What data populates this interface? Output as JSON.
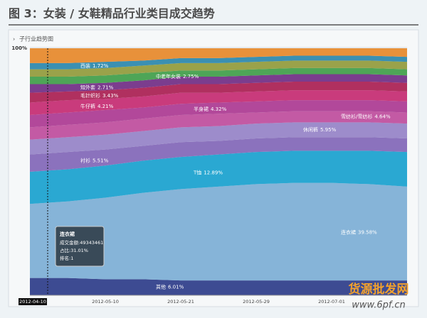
{
  "chart_data": {
    "type": "area",
    "stacked": true,
    "title": "图 3：女装 / 女鞋精品行业类目成交趋势",
    "subtitle": "子行业趋势图",
    "categories": [
      "2012-04-10",
      null,
      "2012-05-10",
      null,
      "2012-05-21",
      null,
      "2012-05-29",
      null,
      "2012-07-01",
      null,
      null
    ],
    "ylim": [
      0,
      100
    ],
    "yticks": [
      {
        "value": 100,
        "label": "100%"
      }
    ],
    "series": [
      {
        "name": "其他",
        "share": 6.01,
        "share_label": "6.01%",
        "color": "#3d4b92",
        "values": [
          7,
          7,
          6.5,
          6.5,
          6,
          6,
          6,
          6,
          6,
          6,
          6
        ]
      },
      {
        "name": "连衣裙",
        "share": 39.58,
        "share_label": "39.58%",
        "color": "#86b4d8",
        "values": [
          30,
          31,
          33,
          35,
          37,
          38,
          39,
          39.5,
          39.5,
          39,
          38
        ]
      },
      {
        "name": "T恤",
        "share": 12.89,
        "share_label": "12.89%",
        "color": "#2aa8d2",
        "values": [
          13,
          13,
          13,
          13,
          13,
          13,
          13,
          13,
          13,
          13.5,
          14
        ]
      },
      {
        "name": "衬衫",
        "share": 5.51,
        "share_label": "5.51%",
        "color": "#8b72bd",
        "values": [
          7,
          7,
          6.5,
          6,
          6,
          5.5,
          5.5,
          5.5,
          5.5,
          5.5,
          5.5
        ]
      },
      {
        "name": "休闲裤",
        "share": 5.95,
        "share_label": "5.95%",
        "color": "#9d8ccb",
        "values": [
          6,
          6,
          6,
          6,
          6,
          6,
          6,
          6,
          6,
          6,
          6
        ]
      },
      {
        "name": "雪纺衫/雪纺衫",
        "share": 4.64,
        "share_label": "4.64%",
        "color": "#c35aa4",
        "values": [
          5,
          5,
          5,
          5,
          5,
          5,
          4.5,
          4.5,
          4.5,
          4.5,
          4.5
        ]
      },
      {
        "name": "半身裙",
        "share": 4.32,
        "share_label": "4.32%",
        "color": "#b2489a",
        "values": [
          5,
          5,
          5,
          4.5,
          4.5,
          4.5,
          4.5,
          4.5,
          4.5,
          4.5,
          4.5
        ]
      },
      {
        "name": "牛仔裤",
        "share": 4.21,
        "share_label": "4.21%",
        "color": "#c93b7c",
        "values": [
          5,
          5,
          4.5,
          4.5,
          4.5,
          4,
          4,
          4,
          4,
          4,
          4
        ]
      },
      {
        "name": "毛针织衫",
        "share": 3.43,
        "share_label": "3.43%",
        "color": "#b0305f",
        "values": [
          4,
          3.5,
          3.5,
          3.5,
          3.5,
          3.5,
          3.5,
          3.5,
          3.5,
          3.5,
          3.5
        ]
      },
      {
        "name": "短外套",
        "share": 2.71,
        "share_label": "2.71%",
        "color": "#7b3d8e",
        "values": [
          3.5,
          3,
          3,
          3,
          3,
          3,
          3,
          3,
          3,
          3,
          3
        ]
      },
      {
        "name": "中老年女装",
        "share": 2.75,
        "share_label": "2.75%",
        "color": "#4ea557",
        "values": [
          3,
          3,
          3,
          3,
          2.5,
          2.5,
          2.5,
          2.5,
          2.5,
          2.5,
          2.5
        ]
      },
      {
        "color": "#9aa24a",
        "values": [
          3,
          3,
          3,
          3,
          3,
          3,
          3,
          3,
          3,
          3,
          3
        ]
      },
      {
        "name": "西装",
        "share": 1.72,
        "share_label": "1.72%",
        "color": "#3b90b2",
        "values": [
          2.5,
          2.5,
          2.5,
          2,
          2,
          2,
          2,
          2,
          2,
          2,
          2
        ]
      },
      {
        "color": "#e8913a",
        "values": [
          6,
          6,
          5.5,
          5,
          4,
          4,
          3.5,
          3,
          3,
          3,
          3.5
        ]
      }
    ],
    "tooltip": {
      "title": "连衣裙",
      "lines": [
        "成交金额:49343461",
        "占比:31.01%",
        "排名:1"
      ]
    },
    "watermark": {
      "text": "货源批发网",
      "url": "www.6pf.cn"
    }
  }
}
